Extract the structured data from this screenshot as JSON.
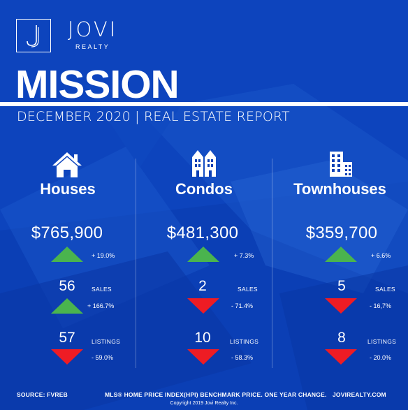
{
  "brand": {
    "name": "JOVI",
    "tagline": "REALTY",
    "logo_letter": "J"
  },
  "report": {
    "title": "MISSION",
    "subtitle": "DECEMBER 2020 | REAL ESTATE REPORT"
  },
  "columns": [
    {
      "name": "Houses",
      "icon": "house-icon",
      "price": "$765,900",
      "price_change": "+ 19.0%",
      "price_trend": "up",
      "sales": "56",
      "sales_label": "SALES",
      "sales_change": "+ 166.7%",
      "sales_trend": "up",
      "listings": "57",
      "listings_label": "LISTINGS",
      "listings_change": "- 59.0%",
      "listings_trend": "down"
    },
    {
      "name": "Condos",
      "icon": "condo-icon",
      "price": "$481,300",
      "price_change": "+ 7.3%",
      "price_trend": "up",
      "sales": "2",
      "sales_label": "SALES",
      "sales_change": "- 71.4%",
      "sales_trend": "down",
      "listings": "10",
      "listings_label": "LISTINGS",
      "listings_change": "- 58.3%",
      "listings_trend": "down"
    },
    {
      "name": "Townhouses",
      "icon": "townhouse-icon",
      "price": "$359,700",
      "price_change": "+ 6.6%",
      "price_trend": "up",
      "sales": "5",
      "sales_label": "SALES",
      "sales_change": "- 16,7%",
      "sales_trend": "down",
      "listings": "8",
      "listings_label": "LISTINGS",
      "listings_change": "- 20.0%",
      "listings_trend": "down"
    }
  ],
  "footer": {
    "source": "SOURCE: FVREB",
    "note": "MLS® HOME PRICE INDEX(HPI) BENCHMARK PRICE. ONE YEAR CHANGE.",
    "website": "JOVIREALTY.COM",
    "copyright": "Copyright 2019 Jovi Realty Inc."
  },
  "colors": {
    "background": "#0b3fb5",
    "up": "#4ab44e",
    "down": "#ee1c24",
    "text": "#ffffff"
  }
}
